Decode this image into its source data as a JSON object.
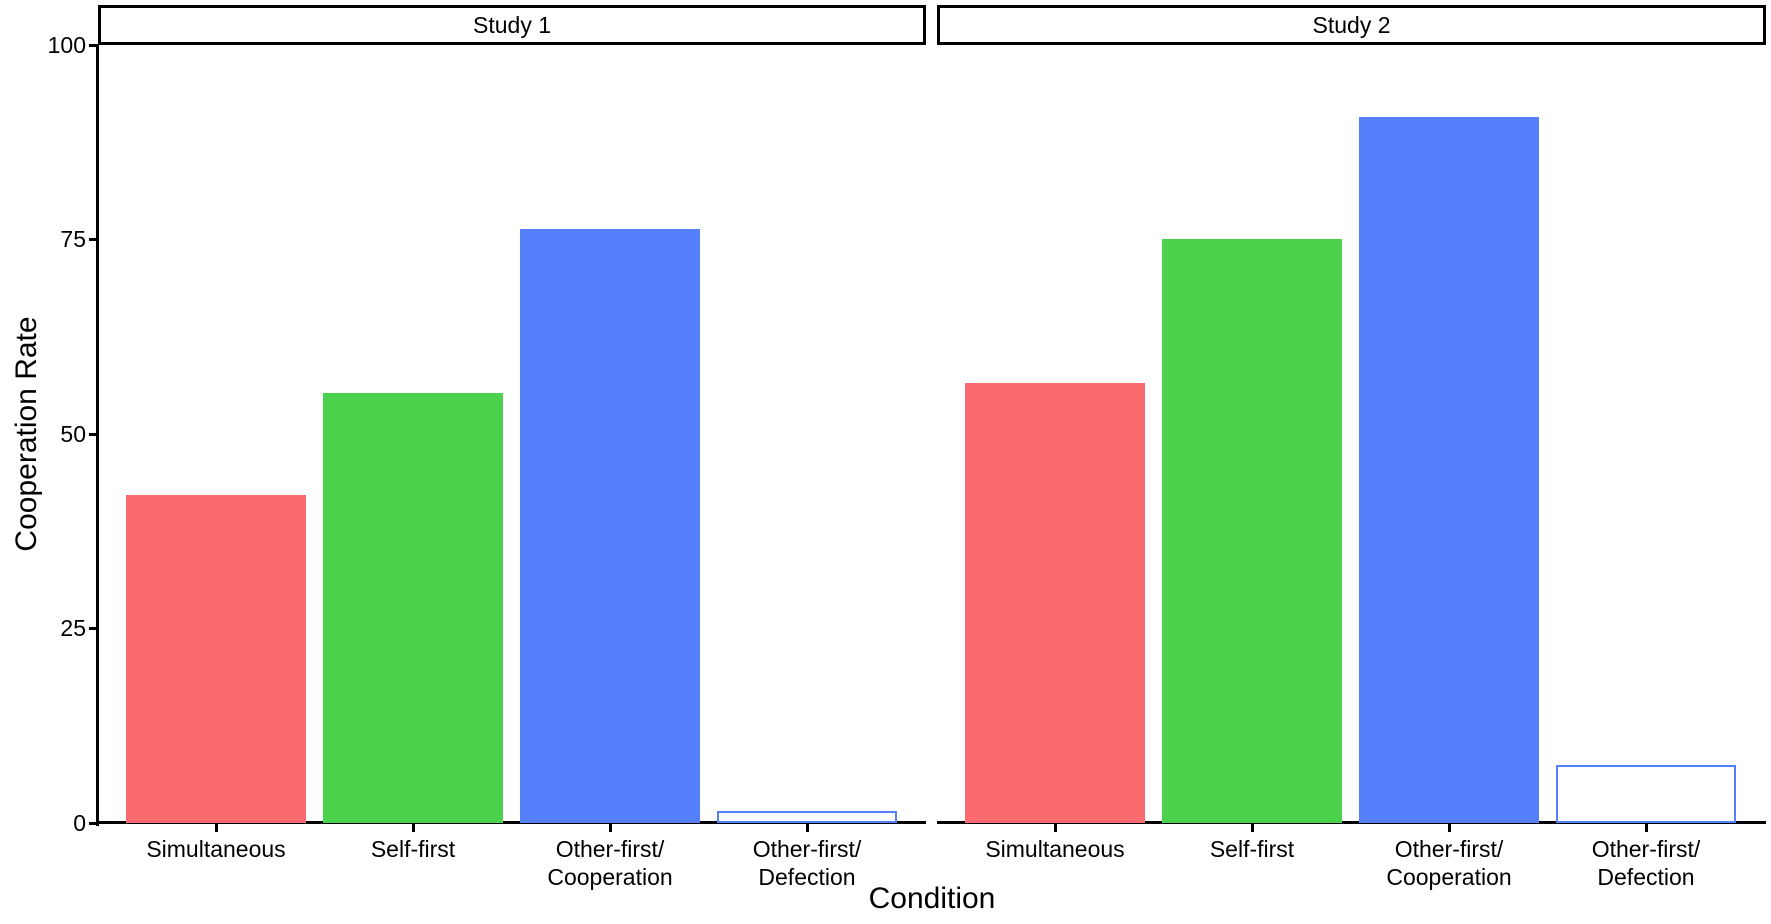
{
  "chart_data": {
    "type": "bar",
    "faceted": true,
    "facet_labels": [
      "Study 1",
      "Study 2"
    ],
    "categories": [
      [
        "Simultaneous"
      ],
      [
        "Self-first"
      ],
      [
        "Other-first/",
        "Cooperation"
      ],
      [
        "Other-first/",
        "Defection"
      ]
    ],
    "series": [
      {
        "name": "Study 1",
        "values": [
          42.2,
          55.3,
          76.4,
          1.5
        ]
      },
      {
        "name": "Study 2",
        "values": [
          56.5,
          75.1,
          90.7,
          7.4
        ]
      }
    ],
    "xlabel": "Condition",
    "ylabel": "Cooperation Rate",
    "ylim": [
      0,
      100
    ],
    "y_ticks": [
      0,
      25,
      50,
      75,
      100
    ],
    "grid": false,
    "legend": "none",
    "bar_fill_colors": [
      "#FB6A6E",
      "#4CD14C",
      "#5580FC",
      "#FFFFFF"
    ],
    "bar_border_colors": [
      "#FB6A6E",
      "#4CD14C",
      "#5580FC",
      "#5580FC"
    ],
    "axis_color": "#000000",
    "background_color": "#FFFFFF"
  }
}
